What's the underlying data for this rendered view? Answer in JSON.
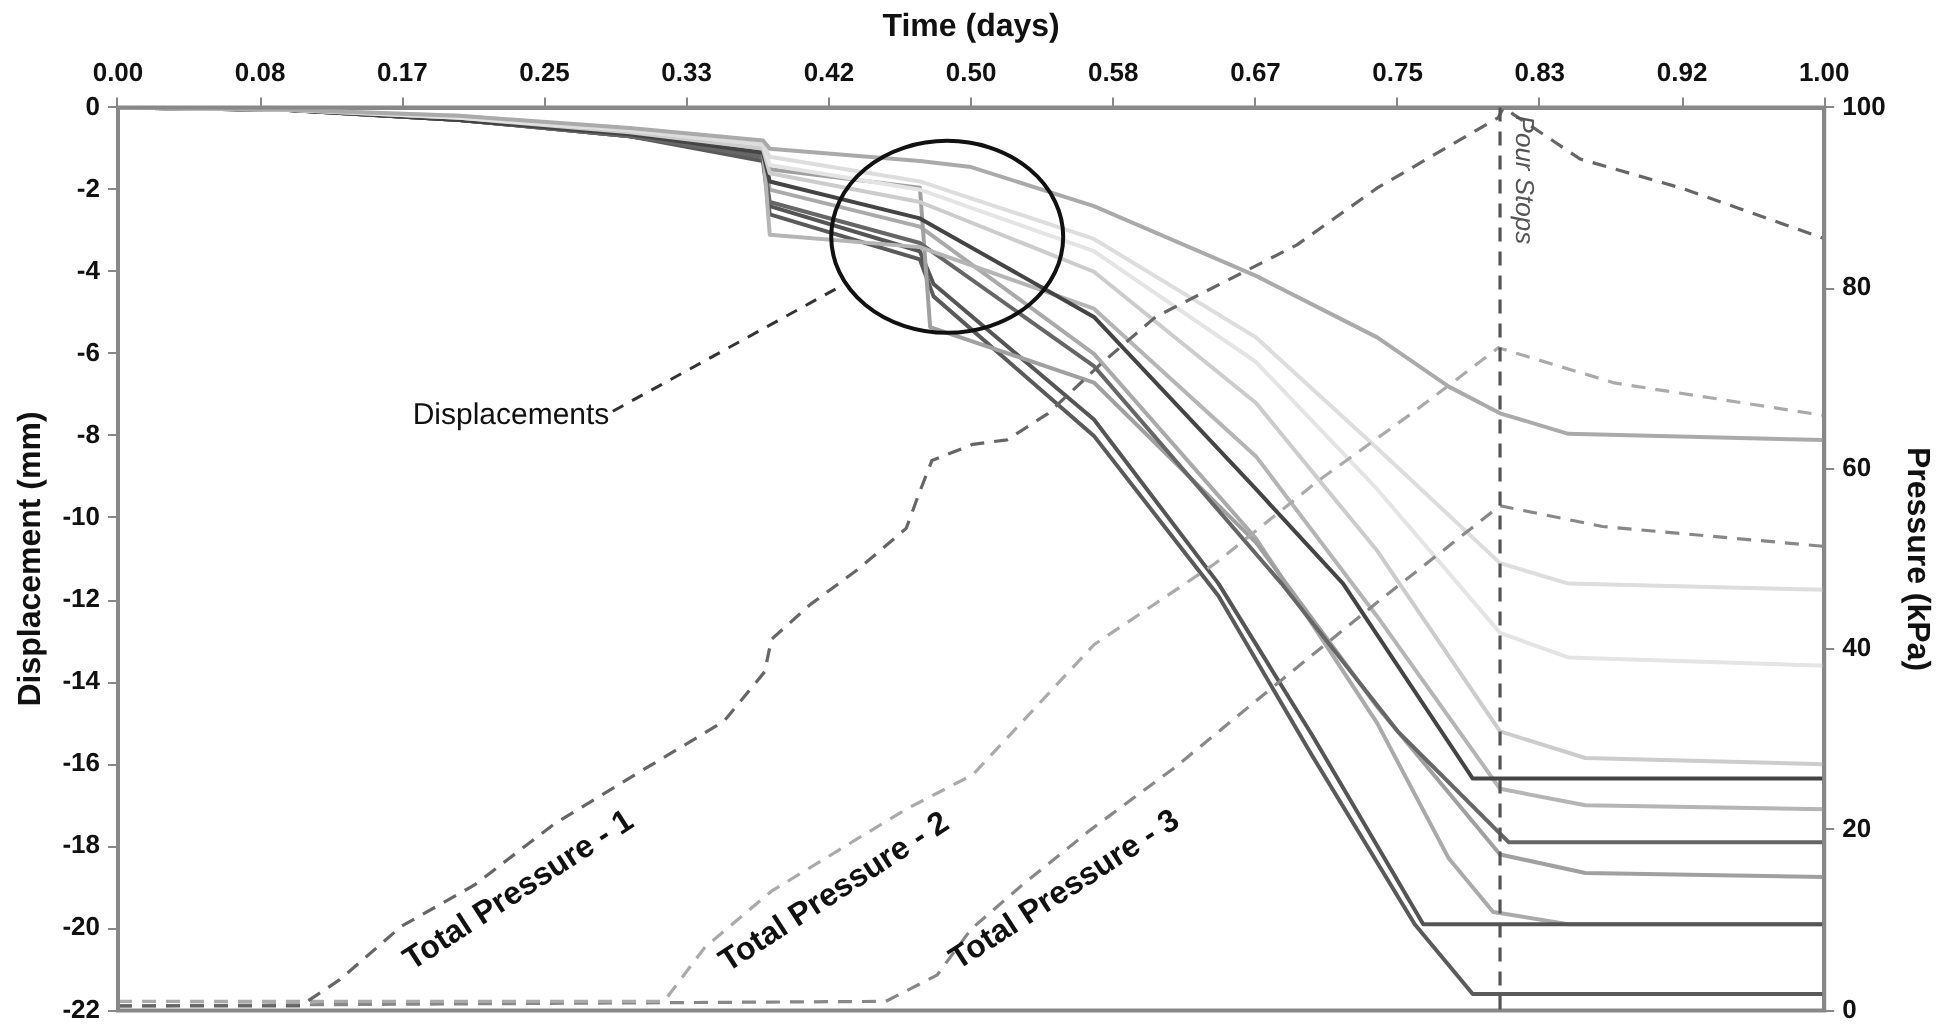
{
  "chart_data": {
    "type": "line",
    "xlabel": "Time (days)",
    "ylabel": "Displacement (mm)",
    "y2label": "Pressure (kPa)",
    "xlim": [
      0,
      1
    ],
    "xticks": [
      {
        "value": 0,
        "label": "0.00"
      },
      {
        "value": 0.0833,
        "label": "0.08"
      },
      {
        "value": 0.1667,
        "label": "0.17"
      },
      {
        "value": 0.25,
        "label": "0.25"
      },
      {
        "value": 0.3333,
        "label": "0.33"
      },
      {
        "value": 0.4167,
        "label": "0.42"
      },
      {
        "value": 0.5,
        "label": "0.50"
      },
      {
        "value": 0.5833,
        "label": "0.58"
      },
      {
        "value": 0.6667,
        "label": "0.67"
      },
      {
        "value": 0.75,
        "label": "0.75"
      },
      {
        "value": 0.8333,
        "label": "0.83"
      },
      {
        "value": 0.9167,
        "label": "0.92"
      },
      {
        "value": 1,
        "label": "1.00"
      }
    ],
    "ylim": [
      -22,
      0
    ],
    "yticks": [
      -22,
      -20,
      -18,
      -16,
      -14,
      -12,
      -10,
      -8,
      -6,
      -4,
      -2,
      0
    ],
    "y2lim": [
      0,
      100
    ],
    "y2ticks": [
      0,
      20,
      40,
      60,
      80,
      100
    ],
    "grid": false,
    "marker": "none",
    "annotations": [
      "Displacements"
    ],
    "ref_lines": [
      {
        "axis": "x",
        "value": 0.81,
        "label": "Pour Stops",
        "color": "#555555",
        "line_style": "dashed"
      }
    ],
    "series": [
      {
        "name": "Total Pressure - 1",
        "axis": "y2",
        "line_style": "dashed",
        "color": "#666666",
        "x": [
          0,
          0.107,
          0.13,
          0.166,
          0.209,
          0.256,
          0.303,
          0.355,
          0.379,
          0.383,
          0.406,
          0.434,
          0.462,
          0.469,
          0.477,
          0.501,
          0.521,
          0.545,
          0.576,
          0.608,
          0.691,
          0.738,
          0.809,
          0.812,
          0.857,
          0.916,
          1
        ],
        "values": [
          0.5,
          0.5,
          3.4,
          9.3,
          13.9,
          20.7,
          26.1,
          32.0,
          37.5,
          41.1,
          45.0,
          48.9,
          53.4,
          57.0,
          60.9,
          62.7,
          63.2,
          66.1,
          71.6,
          76.8,
          84.8,
          91.1,
          98.9,
          100,
          94.3,
          91.1,
          85.5
        ]
      },
      {
        "name": "Total Pressure - 2",
        "axis": "y2",
        "line_style": "dashed",
        "color": "#aaaaaa",
        "x": [
          0,
          0.32,
          0.344,
          0.383,
          0.422,
          0.462,
          0.501,
          0.572,
          0.643,
          0.703,
          0.758,
          0.809,
          0.877,
          1
        ],
        "values": [
          1,
          1,
          7.0,
          13.2,
          17.7,
          22.3,
          26.1,
          40.5,
          49.5,
          58.6,
          66.1,
          73.4,
          69.5,
          65.9
        ]
      },
      {
        "name": "Total Pressure - 3",
        "axis": "y2",
        "line_style": "dashed",
        "color": "#888888",
        "x": [
          0,
          0.45,
          0.48,
          0.5,
          0.53,
          0.57,
          0.62,
          0.68,
          0.74,
          0.81,
          0.87,
          1
        ],
        "values": [
          0.5,
          1,
          3.9,
          9,
          13.9,
          20,
          27,
          36.3,
          45.5,
          55.9,
          53.6,
          51.4
        ]
      },
      {
        "color": "#aaaaaa",
        "x": [
          0,
          0.1,
          0.2,
          0.3,
          0.378,
          0.382,
          0.47,
          0.5,
          0.572,
          0.667,
          0.738,
          0.78,
          0.81,
          0.85,
          1
        ],
        "values": [
          0,
          -0.05,
          -0.2,
          -0.5,
          -0.8,
          -1.0,
          -1.3,
          -1.45,
          -2.4,
          -4.1,
          -5.6,
          -6.8,
          -7.45,
          -7.95,
          -8.1
        ]
      },
      {
        "color": "#dddddd",
        "x": [
          0,
          0.1,
          0.2,
          0.3,
          0.378,
          0.382,
          0.47,
          0.572,
          0.667,
          0.738,
          0.81,
          0.85,
          1
        ],
        "values": [
          0,
          -0.05,
          -0.2,
          -0.55,
          -0.9,
          -1.2,
          -1.8,
          -3.2,
          -5.6,
          -8.3,
          -11.1,
          -11.6,
          -11.75
        ]
      },
      {
        "color": "#e4e4e4",
        "x": [
          0,
          0.1,
          0.2,
          0.3,
          0.378,
          0.382,
          0.47,
          0.572,
          0.667,
          0.738,
          0.81,
          0.85,
          1
        ],
        "values": [
          0,
          -0.05,
          -0.25,
          -0.55,
          -0.9,
          -1.4,
          -2.0,
          -3.5,
          -6.2,
          -9.3,
          -12.8,
          -13.4,
          -13.6
        ]
      },
      {
        "color": "#cccccc",
        "x": [
          0,
          0.1,
          0.2,
          0.3,
          0.378,
          0.382,
          0.47,
          0.572,
          0.667,
          0.738,
          0.81,
          0.86,
          1
        ],
        "values": [
          0,
          -0.05,
          -0.25,
          -0.6,
          -1.0,
          -1.6,
          -2.3,
          -4.0,
          -7.2,
          -10.8,
          -15.2,
          -15.85,
          -16.0
        ]
      },
      {
        "color": "#444444",
        "x": [
          0,
          0.1,
          0.2,
          0.3,
          0.378,
          0.382,
          0.47,
          0.572,
          0.667,
          0.718,
          0.794,
          1
        ],
        "values": [
          0,
          -0.06,
          -0.3,
          -0.65,
          -1.1,
          -1.8,
          -2.7,
          -5.1,
          -9.3,
          -11.6,
          -16.35,
          -16.35
        ]
      },
      {
        "color": "#b5b5b5",
        "x": [
          0,
          0.1,
          0.2,
          0.3,
          0.378,
          0.382,
          0.47,
          0.572,
          0.667,
          0.738,
          0.81,
          0.86,
          1
        ],
        "values": [
          0,
          -0.05,
          -0.25,
          -0.6,
          -1.0,
          -3.1,
          -3.4,
          -4.9,
          -8.5,
          -12.4,
          -16.6,
          -17.0,
          -17.1
        ]
      },
      {
        "color": "#666666",
        "x": [
          0,
          0.1,
          0.2,
          0.3,
          0.378,
          0.382,
          0.47,
          0.572,
          0.682,
          0.75,
          0.815,
          1
        ],
        "values": [
          0,
          -0.06,
          -0.3,
          -0.7,
          -1.2,
          -2.3,
          -3.3,
          -6.3,
          -11.6,
          -15.2,
          -17.9,
          -17.9
        ]
      },
      {
        "color": "#a0a0a0",
        "x": [
          0,
          0.1,
          0.2,
          0.3,
          0.378,
          0.382,
          0.47,
          0.476,
          0.572,
          0.667,
          0.738,
          0.81,
          0.86,
          1
        ],
        "values": [
          0,
          -0.05,
          -0.25,
          -0.6,
          -1.0,
          -1.5,
          -1.95,
          -5.35,
          -6.7,
          -10.6,
          -14.6,
          -18.2,
          -18.65,
          -18.75
        ]
      },
      {
        "color": "#555555",
        "x": [
          0,
          0.1,
          0.2,
          0.3,
          0.378,
          0.382,
          0.47,
          0.478,
          0.572,
          0.645,
          0.7,
          0.765,
          1
        ],
        "values": [
          0,
          -0.06,
          -0.3,
          -0.7,
          -1.2,
          -2.4,
          -3.5,
          -4.3,
          -7.6,
          -11.6,
          -15.3,
          -19.9,
          -19.9
        ]
      },
      {
        "color": "#aaaaaa",
        "x": [
          0,
          0.1,
          0.2,
          0.3,
          0.378,
          0.382,
          0.47,
          0.572,
          0.667,
          0.738,
          0.78,
          0.806,
          0.85,
          1
        ],
        "values": [
          0,
          -0.05,
          -0.25,
          -0.6,
          -1.0,
          -2.0,
          -2.9,
          -6.0,
          -10.5,
          -15.0,
          -18.3,
          -19.6,
          -19.9,
          -19.9
        ]
      },
      {
        "color": "#5a5a5a",
        "x": [
          0,
          0.1,
          0.2,
          0.3,
          0.378,
          0.382,
          0.47,
          0.478,
          0.572,
          0.645,
          0.7,
          0.76,
          0.794,
          1
        ],
        "values": [
          0,
          -0.06,
          -0.3,
          -0.7,
          -1.3,
          -2.6,
          -3.7,
          -4.6,
          -8.0,
          -11.9,
          -15.8,
          -19.9,
          -21.6,
          -21.6
        ]
      }
    ]
  }
}
